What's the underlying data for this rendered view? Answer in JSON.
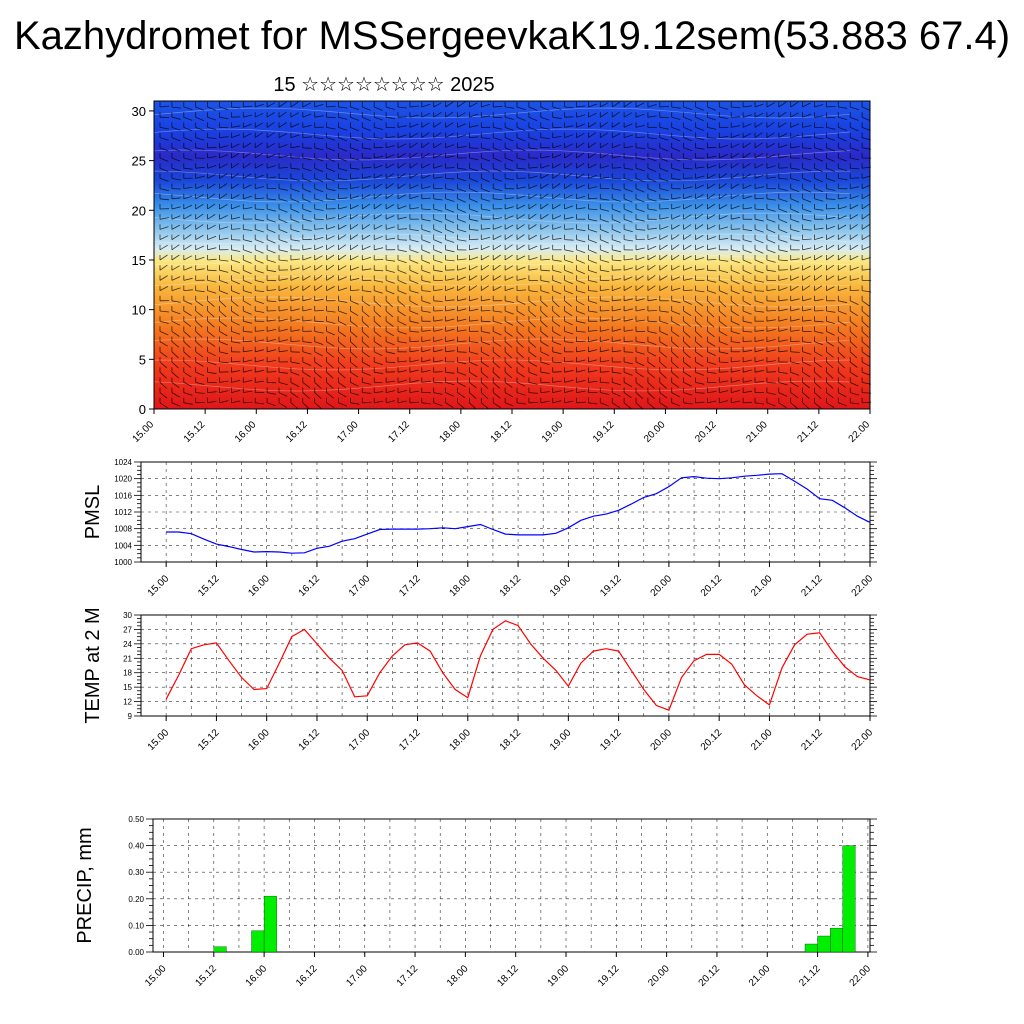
{
  "title": "Kazhydromet for MSSergeevkaK19.12sem(53.883 67.4)",
  "subtitle": "15 ☆☆☆☆☆☆☆☆ 2025",
  "colors": {
    "pmsl_line": "#0000ff",
    "temp_line": "#ff0000",
    "precip_bar": "#00ee00"
  },
  "chart_data": [
    {
      "type": "heatmap",
      "title": "",
      "x_tick_labels": [
        "15.00",
        "15.12",
        "16.00",
        "16.12",
        "17.00",
        "17.12",
        "18.00",
        "18.12",
        "19.00",
        "19.12",
        "20.00",
        "20.12",
        "21.00",
        "21.12",
        "22.00"
      ],
      "y_ticks": [
        0,
        5,
        10,
        15,
        20,
        25,
        30
      ],
      "ylim": [
        0,
        31
      ],
      "colorscale": "red (low levels) → orange → yellow → light blue → blue (high levels)",
      "overlay": "wind barbs"
    },
    {
      "type": "line",
      "ylabel": "PMSL",
      "ylim": [
        1000,
        1024
      ],
      "y_ticks": [
        1000,
        1004,
        1008,
        1012,
        1016,
        1020,
        1024
      ],
      "x_tick_labels": [
        "15.00",
        "15.12",
        "16.00",
        "16.12",
        "17.00",
        "17.12",
        "18.00",
        "18.12",
        "19.00",
        "19.12",
        "20.00",
        "20.12",
        "21.00",
        "21.12",
        "22.00"
      ],
      "x_hours": [
        0,
        3,
        6,
        9,
        12,
        15,
        18,
        21,
        24,
        27,
        30,
        33,
        36,
        39,
        42,
        45,
        48,
        51,
        54,
        57,
        60,
        63,
        66,
        69,
        72,
        75,
        78,
        81,
        84,
        87,
        90,
        93,
        96,
        99,
        102,
        105,
        108,
        111,
        114,
        117,
        120,
        123,
        126,
        129,
        132,
        135,
        138,
        141,
        144,
        147,
        150,
        153,
        156,
        159,
        162,
        165,
        168
      ],
      "values": [
        1007.2,
        1007.2,
        1006.8,
        1005.5,
        1004.3,
        1003.7,
        1003.0,
        1002.4,
        1002.5,
        1002.4,
        1002.1,
        1002.2,
        1003.3,
        1003.8,
        1005.0,
        1005.6,
        1006.7,
        1007.8,
        1007.9,
        1007.9,
        1007.9,
        1008.0,
        1008.2,
        1008.0,
        1008.5,
        1009.0,
        1007.8,
        1006.7,
        1006.5,
        1006.5,
        1006.5,
        1006.9,
        1008.2,
        1010.0,
        1011.0,
        1011.5,
        1012.4,
        1013.9,
        1015.5,
        1016.4,
        1018.1,
        1020.2,
        1020.5,
        1020.1,
        1020.0,
        1020.2,
        1020.6,
        1020.8,
        1021.1,
        1021.2,
        1019.4,
        1017.5,
        1015.2,
        1014.8,
        1013.0,
        1011.0,
        1009.5
      ]
    },
    {
      "type": "line",
      "ylabel": "TEMP at 2 M",
      "ylim": [
        9,
        30
      ],
      "y_ticks": [
        9,
        12,
        15,
        18,
        21,
        24,
        27,
        30
      ],
      "x_tick_labels": [
        "15.00",
        "15.12",
        "16.00",
        "16.12",
        "17.00",
        "17.12",
        "18.00",
        "18.12",
        "19.00",
        "19.12",
        "20.00",
        "20.12",
        "21.00",
        "21.12",
        "22.00"
      ],
      "x_hours": [
        0,
        3,
        6,
        9,
        12,
        15,
        18,
        21,
        24,
        27,
        30,
        33,
        36,
        39,
        42,
        45,
        48,
        51,
        54,
        57,
        60,
        63,
        66,
        69,
        72,
        75,
        78,
        81,
        84,
        87,
        90,
        93,
        96,
        99,
        102,
        105,
        108,
        111,
        114,
        117,
        120,
        123,
        126,
        129,
        132,
        135,
        138,
        141,
        144,
        147,
        150,
        153,
        156,
        159,
        162,
        165,
        168
      ],
      "values": [
        12.5,
        17.5,
        23.0,
        23.8,
        24.2,
        20.5,
        17.0,
        14.5,
        14.7,
        20.0,
        25.5,
        27.0,
        24.0,
        21.0,
        18.5,
        13.0,
        13.2,
        18.0,
        21.5,
        23.8,
        24.2,
        22.5,
        18.0,
        14.5,
        12.8,
        21.5,
        27.0,
        28.8,
        27.8,
        24.0,
        21.0,
        18.5,
        15.2,
        20.0,
        22.5,
        23.0,
        22.5,
        18.5,
        14.5,
        11.2,
        10.2,
        17.0,
        20.5,
        21.8,
        21.8,
        19.8,
        15.5,
        13.2,
        11.3,
        19.0,
        23.8,
        26.0,
        26.3,
        22.5,
        19.2,
        17.2,
        16.5
      ]
    },
    {
      "type": "bar",
      "ylabel": "PRECIP, mm",
      "ylim": [
        0,
        0.5
      ],
      "y_ticks": [
        "0.00",
        "0.10",
        "0.20",
        "0.30",
        "0.40",
        "0.50"
      ],
      "x_tick_labels": [
        "15.00",
        "15.12",
        "16.00",
        "16.12",
        "17.00",
        "17.12",
        "18.00",
        "18.12",
        "19.00",
        "19.12",
        "20.00",
        "20.12",
        "21.00",
        "21.12",
        "22.00"
      ],
      "bars": [
        {
          "hour": 15,
          "value": 0.02
        },
        {
          "hour": 24,
          "value": 0.08
        },
        {
          "hour": 27,
          "value": 0.21
        },
        {
          "hour": 156,
          "value": 0.03
        },
        {
          "hour": 159,
          "value": 0.06
        },
        {
          "hour": 162,
          "value": 0.09
        },
        {
          "hour": 165,
          "value": 0.4
        }
      ]
    }
  ]
}
